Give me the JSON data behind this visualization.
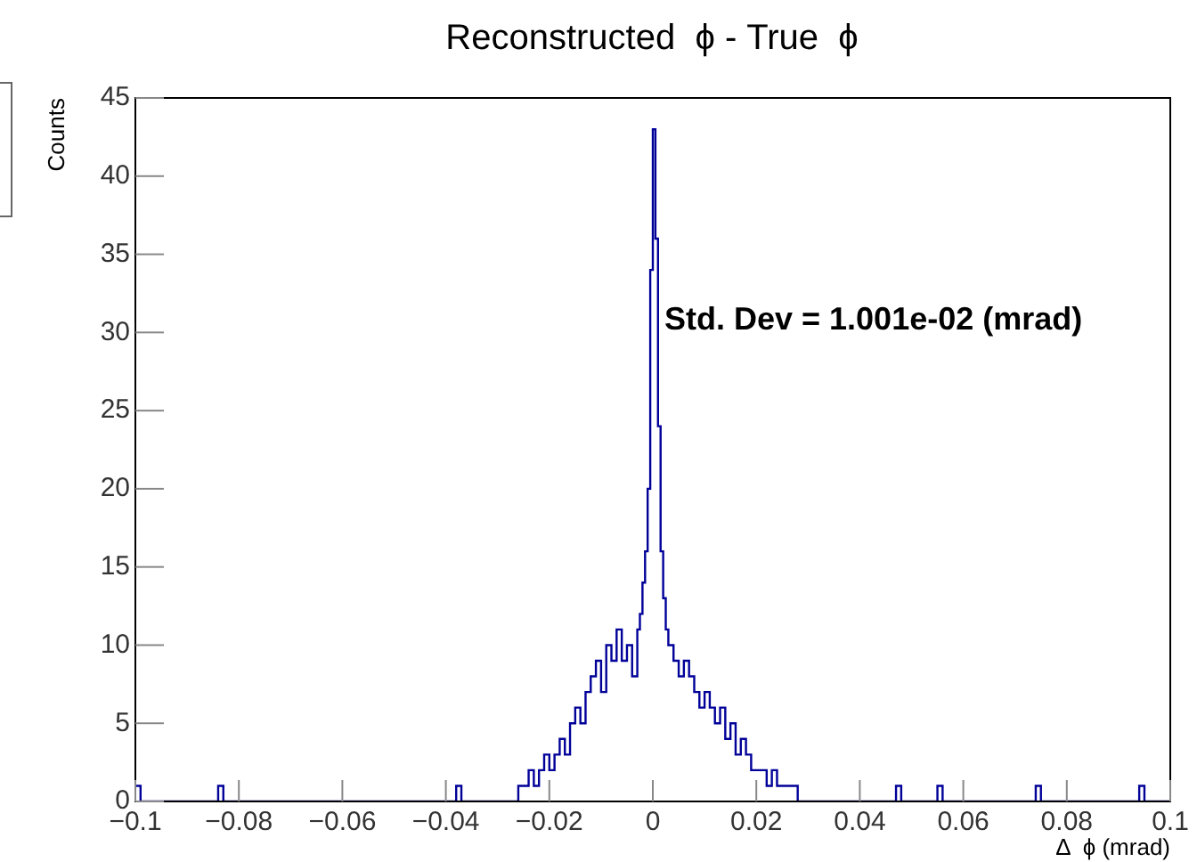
{
  "chart_data": {
    "type": "histogram",
    "title": "Reconstructed  ϕ - True  ϕ",
    "xlabel": "Δ  ϕ (mrad)",
    "ylabel": "Counts",
    "annotations": [
      "Std. Dev = 1.001e-02 (mrad)"
    ],
    "color": "#000099",
    "bins": [
      -0.1,
      -0.099,
      -0.084,
      -0.083,
      -0.038,
      -0.037,
      -0.026,
      -0.025,
      -0.024,
      -0.023,
      -0.022,
      -0.021,
      -0.02,
      -0.019,
      -0.018,
      -0.017,
      -0.016,
      -0.015,
      -0.014,
      -0.013,
      -0.012,
      -0.011,
      -0.01,
      -0.009,
      -0.008,
      -0.007,
      -0.006,
      -0.005,
      -0.004,
      -0.003,
      -0.0025,
      -0.002,
      -0.0015,
      -0.001,
      -0.0005,
      0,
      0.0005,
      0.001,
      0.0015,
      0.002,
      0.0025,
      0.003,
      0.004,
      0.005,
      0.006,
      0.007,
      0.008,
      0.009,
      0.01,
      0.011,
      0.012,
      0.013,
      0.014,
      0.015,
      0.016,
      0.017,
      0.018,
      0.019,
      0.02,
      0.021,
      0.022,
      0.023,
      0.024,
      0.025,
      0.026,
      0.027,
      0.028,
      0.047,
      0.048,
      0.055,
      0.056,
      0.074,
      0.075,
      0.094,
      0.095,
      0.1
    ],
    "values": [
      1,
      0,
      1,
      0,
      1,
      0,
      1,
      1,
      2,
      1,
      2,
      3,
      2,
      3,
      4,
      3,
      5,
      6,
      5,
      7,
      8,
      9,
      7,
      10,
      9,
      11,
      9,
      10,
      8,
      11,
      12,
      14,
      16,
      20,
      34,
      43,
      36,
      24,
      16,
      13,
      11,
      10,
      9,
      8,
      9,
      8,
      7,
      6,
      7,
      6,
      5,
      6,
      4,
      5,
      3,
      4,
      3,
      2,
      2,
      2,
      1,
      2,
      1,
      1,
      1,
      1,
      0,
      1,
      0,
      1,
      0,
      1,
      0,
      1,
      0
    ],
    "xlim": [
      -0.1,
      0.1
    ],
    "xticks": [
      {
        "value": -0.1,
        "label": "−0.1"
      },
      {
        "value": -0.08,
        "label": "−0.08"
      },
      {
        "value": -0.06,
        "label": "−0.06"
      },
      {
        "value": -0.04,
        "label": "−0.04"
      },
      {
        "value": -0.02,
        "label": "−0.02"
      },
      0,
      0.02,
      0.04,
      0.06,
      0.08,
      0.1
    ],
    "ylim": [
      0,
      45
    ],
    "yticks": [
      0,
      5,
      10,
      15,
      20,
      25,
      30,
      35,
      40,
      45
    ],
    "grid": false,
    "legend": false
  }
}
